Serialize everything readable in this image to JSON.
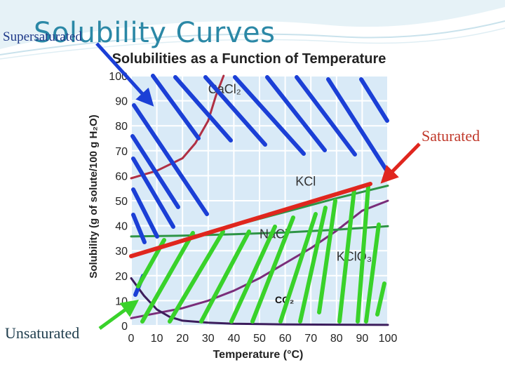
{
  "slide": {
    "title": "Solubility Curves",
    "annotations": {
      "supersaturated": "Supersaturated",
      "saturated": "Saturated",
      "unsaturated": "Unsaturated"
    }
  },
  "colors": {
    "title": "#2b88a6",
    "grid_bg": "#d9eaf7",
    "grid_line": "#ffffff",
    "hatch_blue": "#1b3fd6",
    "hatch_green": "#39d22a",
    "saturated_line": "#e0261e",
    "cacl2": "#b03044",
    "kclo3": "#7a2d7a",
    "nacl": "#2e9446",
    "kcl": "#2e9446",
    "co2": "#3c1d5c"
  },
  "chart_data": {
    "type": "line",
    "title": "Solubilities as a Function of Temperature",
    "xlabel": "Temperature (°C)",
    "ylabel": "Solubility (g of solute/100 g H₂O)",
    "xlim": [
      0,
      100
    ],
    "ylim": [
      0,
      100
    ],
    "xticks": [
      "0",
      "10",
      "20",
      "30",
      "40",
      "50",
      "60",
      "70",
      "80",
      "90",
      "100"
    ],
    "yticks": [
      "0",
      "10",
      "20",
      "30",
      "40",
      "50",
      "60",
      "70",
      "80",
      "90",
      "100"
    ],
    "grid": true,
    "series": [
      {
        "name": "CaCl2",
        "label": "CaCl₂",
        "color_key": "cacl2",
        "label_pos": [
          30,
          93
        ],
        "points": [
          [
            0,
            59
          ],
          [
            10,
            62
          ],
          [
            20,
            67
          ],
          [
            25,
            73
          ],
          [
            30,
            82
          ],
          [
            33,
            92
          ],
          [
            36,
            100
          ]
        ]
      },
      {
        "name": "KClO3",
        "label": "KClO₃",
        "color_key": "kclo3",
        "label_pos": [
          80,
          26
        ],
        "points": [
          [
            0,
            3
          ],
          [
            10,
            5
          ],
          [
            20,
            7
          ],
          [
            30,
            10
          ],
          [
            40,
            14
          ],
          [
            50,
            19
          ],
          [
            60,
            25
          ],
          [
            70,
            31
          ],
          [
            80,
            38
          ],
          [
            90,
            46
          ],
          [
            100,
            50
          ]
        ]
      },
      {
        "name": "NaCl",
        "label": "NaCl",
        "color_key": "nacl",
        "label_pos": [
          50,
          35
        ],
        "points": [
          [
            0,
            35.7
          ],
          [
            20,
            36
          ],
          [
            40,
            36.6
          ],
          [
            60,
            37.3
          ],
          [
            80,
            38.4
          ],
          [
            100,
            39.8
          ]
        ]
      },
      {
        "name": "KCl",
        "label": "KCl",
        "color_key": "kcl",
        "label_pos": [
          64,
          56
        ],
        "points": [
          [
            0,
            28
          ],
          [
            20,
            34
          ],
          [
            40,
            40
          ],
          [
            60,
            45.5
          ],
          [
            80,
            51
          ],
          [
            100,
            56
          ]
        ]
      },
      {
        "name": "CO2",
        "label": "CO₂",
        "color_key": "co2",
        "label_pos": [
          56,
          9
        ],
        "points": [
          [
            0,
            19
          ],
          [
            5,
            12
          ],
          [
            10,
            6.5
          ],
          [
            15,
            3.5
          ],
          [
            20,
            2
          ],
          [
            30,
            1.2
          ],
          [
            40,
            0.8
          ],
          [
            60,
            0.5
          ],
          [
            80,
            0.4
          ],
          [
            100,
            0.3
          ]
        ]
      }
    ]
  }
}
